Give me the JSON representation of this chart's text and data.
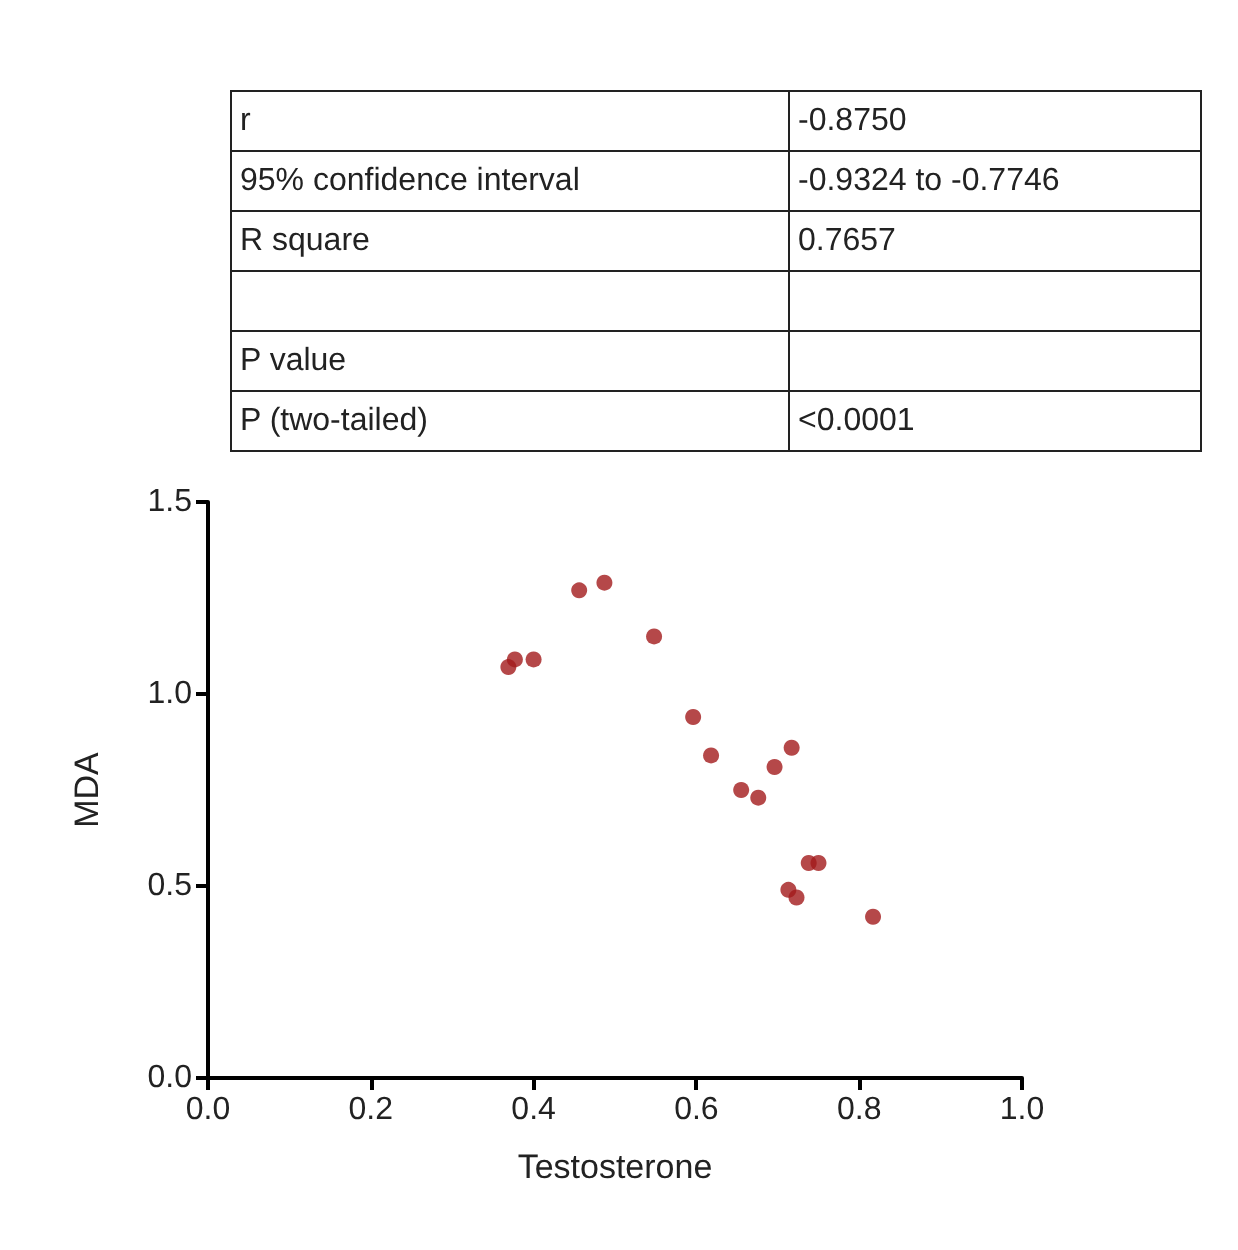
{
  "chart_data": [
    {
      "type": "other",
      "cell_labels": [
        [
          "r",
          "-0.8750"
        ],
        [
          "95% confidence interval",
          "-0.9324 to -0.7746"
        ],
        [
          "R square",
          "0.7657"
        ],
        [
          null,
          null
        ],
        [
          "P value",
          null
        ],
        [
          "P (two-tailed)",
          "<0.0001"
        ]
      ]
    },
    {
      "type": "scatter",
      "xlabel": "Testosterone",
      "ylabel": "MDA",
      "color": "#a31a1c",
      "marker": "circle",
      "grid": false,
      "x": [
        0.369,
        0.377,
        0.4,
        0.456,
        0.487,
        0.548,
        0.596,
        0.618,
        0.655,
        0.676,
        0.696,
        0.717,
        0.723,
        0.713,
        0.738,
        0.75,
        0.817
      ],
      "values": [
        1.07,
        1.09,
        1.09,
        1.27,
        1.29,
        1.15,
        0.94,
        0.84,
        0.75,
        0.73,
        0.81,
        0.86,
        0.47,
        0.49,
        0.56,
        0.56,
        0.42
      ],
      "xlim": [
        0,
        1
      ],
      "xticks": [
        {
          "value": 0,
          "label": "0.0"
        },
        {
          "value": 0.2,
          "label": "0.2"
        },
        {
          "value": 0.4,
          "label": "0.4"
        },
        {
          "value": 0.6,
          "label": "0.6"
        },
        {
          "value": 0.8,
          "label": "0.8"
        },
        {
          "value": 1,
          "label": "1.0"
        }
      ],
      "ylim": [
        0,
        1.5
      ],
      "yticks": [
        {
          "value": 0,
          "label": "0.0"
        },
        {
          "value": 0.5,
          "label": "0.5"
        },
        {
          "value": 1,
          "label": "1.0"
        },
        {
          "value": 1.5,
          "label": "1.5"
        }
      ]
    }
  ]
}
